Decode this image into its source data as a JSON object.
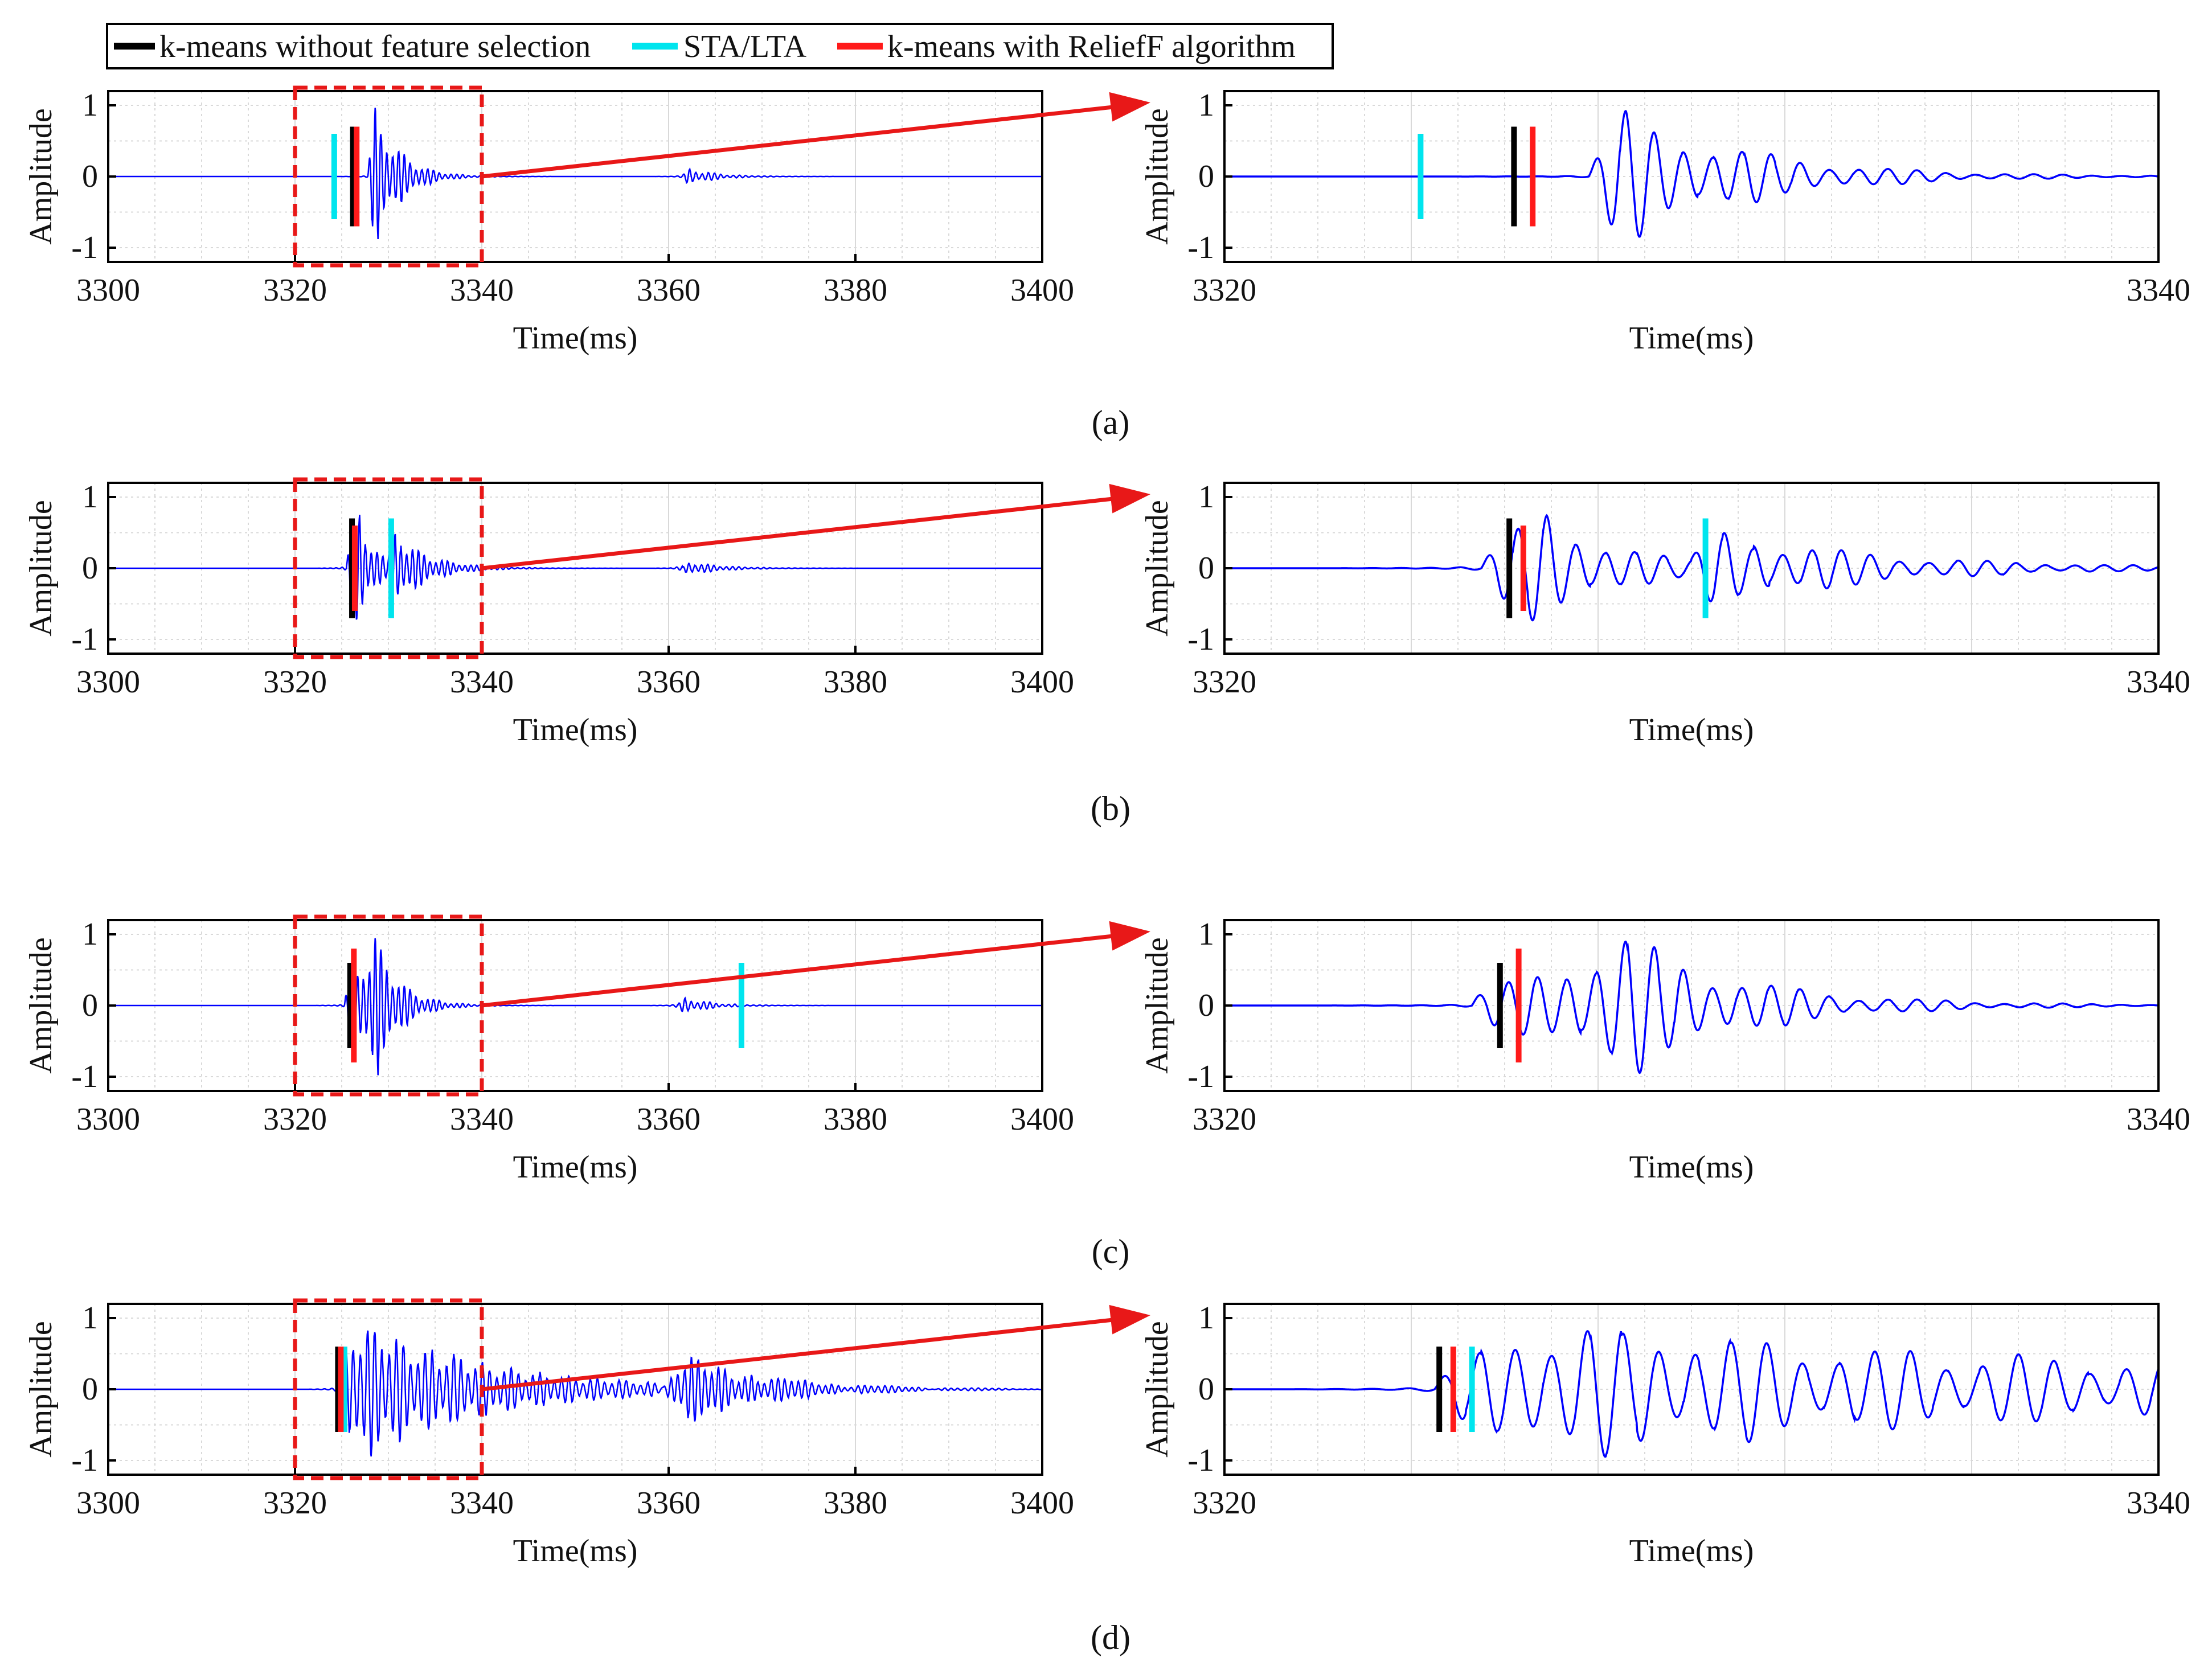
{
  "legend": {
    "items": [
      {
        "label": "k-means without feature selection",
        "color": "#000000"
      },
      {
        "label": "STA/LTA",
        "color": "#00e5ee"
      },
      {
        "label": "k-means with ReliefF algorithm",
        "color": "#ff1a1a"
      }
    ]
  },
  "colors": {
    "signal": "#0000ff",
    "grid": "#d9d9d9",
    "zoom_box": "#e81818",
    "arrow": "#e81818"
  },
  "chart_data": [
    {
      "panel": "(a)",
      "type": "line",
      "ylabel": "Amplitude",
      "xlabel": "Time(ms)",
      "full": {
        "xlim": [
          3300,
          3400
        ],
        "ylim": [
          -1.2,
          1.2
        ],
        "xticks": [
          "3300",
          "3320",
          "3340",
          "3360",
          "3380",
          "3400"
        ]
      },
      "zoom": {
        "xlim": [
          3320,
          3340
        ],
        "ylim": [
          -1.2,
          1.2
        ],
        "xticks": [
          "3320",
          "3340"
        ]
      },
      "yticks": [
        "1",
        "0",
        "-1"
      ],
      "zoom_box_x": [
        3320,
        3340
      ],
      "signal": {
        "events": [
          {
            "onset": 3327.8,
            "amp": 1.0,
            "peak_delay": 0.8,
            "decay": 2.6,
            "freq": 1.6
          },
          {
            "onset": 3361.5,
            "amp": 0.12,
            "peak_delay": 0.6,
            "decay": 3.0,
            "freq": 1.5
          }
        ],
        "precursor": 0.02
      },
      "picks": {
        "black": 3326.2,
        "cyan": 3324.2,
        "red": 3326.6
      },
      "pick_heights": {
        "black": 0.7,
        "cyan": 0.6,
        "red": 0.7
      }
    },
    {
      "panel": "(b)",
      "type": "line",
      "ylabel": "Amplitude",
      "xlabel": "Time(ms)",
      "full": {
        "xlim": [
          3300,
          3400
        ],
        "ylim": [
          -1.2,
          1.2
        ],
        "xticks": [
          "3300",
          "3320",
          "3340",
          "3360",
          "3380",
          "3400"
        ]
      },
      "zoom": {
        "xlim": [
          3320,
          3340
        ],
        "ylim": [
          -1.2,
          1.2
        ],
        "xticks": [
          "3320",
          "3340"
        ]
      },
      "yticks": [
        "1",
        "0",
        "-1"
      ],
      "zoom_box_x": [
        3320,
        3340
      ],
      "signal": {
        "events": [
          {
            "onset": 3325.5,
            "amp": 0.95,
            "peak_delay": 1.4,
            "decay": 1.4,
            "freq": 1.6
          },
          {
            "onset": 3330.0,
            "amp": 0.55,
            "peak_delay": 0.5,
            "decay": 3.5,
            "freq": 1.6
          },
          {
            "onset": 3361.5,
            "amp": 0.1,
            "peak_delay": 0.6,
            "decay": 3.5,
            "freq": 1.5
          }
        ],
        "precursor": 0.04
      },
      "picks": {
        "black": 3326.1,
        "cyan": 3330.3,
        "red": 3326.4
      },
      "pick_heights": {
        "black": 0.7,
        "cyan": 0.7,
        "red": 0.6
      }
    },
    {
      "panel": "(c)",
      "type": "line",
      "ylabel": "Amplitude",
      "xlabel": "Time(ms)",
      "full": {
        "xlim": [
          3300,
          3400
        ],
        "ylim": [
          -1.2,
          1.2
        ],
        "xticks": [
          "3300",
          "3320",
          "3340",
          "3360",
          "3380",
          "3400"
        ]
      },
      "zoom": {
        "xlim": [
          3320,
          3340
        ],
        "ylim": [
          -1.2,
          1.2
        ],
        "xticks": [
          "3320",
          "3340"
        ]
      },
      "yticks": [
        "1",
        "0",
        "-1"
      ],
      "zoom_box_x": [
        3320,
        3340
      ],
      "signal": {
        "events": [
          {
            "onset": 3325.3,
            "amp": 1.0,
            "peak_delay": 3.3,
            "decay": 2.6,
            "freq": 1.6
          },
          {
            "onset": 3361.0,
            "amp": 0.12,
            "peak_delay": 0.6,
            "decay": 3.0,
            "freq": 1.5
          }
        ],
        "precursor": 0.03
      },
      "picks": {
        "black": 3325.9,
        "cyan": 3367.8,
        "red": 3326.3
      },
      "pick_heights": {
        "black": 0.6,
        "cyan": 0.6,
        "red": 0.8
      }
    },
    {
      "panel": "(d)",
      "type": "line",
      "ylabel": "Amplitude",
      "xlabel": "Time(ms)",
      "full": {
        "xlim": [
          3300,
          3400
        ],
        "ylim": [
          -1.2,
          1.2
        ],
        "xticks": [
          "3300",
          "3320",
          "3340",
          "3360",
          "3380",
          "3400"
        ]
      },
      "zoom": {
        "xlim": [
          3320,
          3340
        ],
        "ylim": [
          -1.2,
          1.2
        ],
        "xticks": [
          "3320",
          "3340"
        ]
      },
      "yticks": [
        "1",
        "0",
        "-1"
      ],
      "zoom_box_x": [
        3320,
        3340
      ],
      "signal": {
        "events": [
          {
            "onset": 3324.5,
            "amp": 1.0,
            "peak_delay": 2.0,
            "decay": 14.0,
            "freq": 1.3
          },
          {
            "onset": 3359.5,
            "amp": 0.45,
            "peak_delay": 2.5,
            "decay": 9.0,
            "freq": 1.4
          }
        ],
        "precursor": 0.05
      },
      "picks": {
        "black": 3324.6,
        "cyan": 3325.3,
        "red": 3324.9
      },
      "pick_heights": {
        "black": 0.6,
        "cyan": 0.6,
        "red": 0.6
      }
    }
  ]
}
